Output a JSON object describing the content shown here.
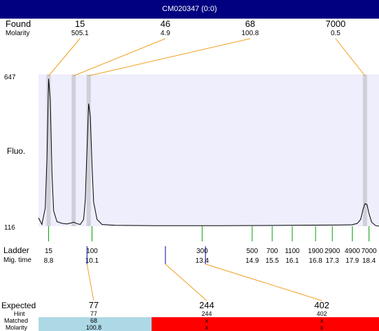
{
  "window": {
    "title": "CM020347 (0:0)"
  },
  "labels": {
    "found": "Found",
    "molarity": "Molarity",
    "fluo": "Fluo.",
    "ladder": "Ladder",
    "mig_time": "Mig. time",
    "expected": "Expected",
    "hint": "Hint",
    "matched": "Matched",
    "molarity_bottom": "Molarity"
  },
  "colors": {
    "title_bar": "#000080",
    "plot_bg": "#eeeefc",
    "peak_band": "#cfcfd8",
    "callout_line": "#f0a020",
    "ladder_tick": "#00a000",
    "marker_tick": "#0000a0",
    "matched_ok": "#add8e6",
    "matched_fail": "#ff0000"
  },
  "chart_data": {
    "type": "line",
    "title": "CM020347 (0:0)",
    "ylabel": "Fluo.",
    "ylim": [
      116,
      647
    ],
    "y_tick_labels": [
      "647",
      "116"
    ],
    "x_axis": "Mig. time",
    "xlim": [
      8.5,
      18.7
    ],
    "trace": [
      [
        8.5,
        145
      ],
      [
        8.6,
        122
      ],
      [
        8.7,
        180
      ],
      [
        8.75,
        350
      ],
      [
        8.8,
        632
      ],
      [
        8.85,
        560
      ],
      [
        8.9,
        300
      ],
      [
        8.95,
        170
      ],
      [
        9.05,
        132
      ],
      [
        9.2,
        126
      ],
      [
        9.35,
        124
      ],
      [
        9.5,
        128
      ],
      [
        9.55,
        130
      ],
      [
        9.65,
        125
      ],
      [
        9.75,
        122
      ],
      [
        9.85,
        140
      ],
      [
        9.9,
        210
      ],
      [
        9.95,
        380
      ],
      [
        10.0,
        545
      ],
      [
        10.05,
        500
      ],
      [
        10.1,
        330
      ],
      [
        10.15,
        200
      ],
      [
        10.25,
        140
      ],
      [
        10.4,
        122
      ],
      [
        10.8,
        119
      ],
      [
        12.0,
        118
      ],
      [
        14.0,
        118
      ],
      [
        16.0,
        119
      ],
      [
        17.5,
        120
      ],
      [
        17.9,
        121
      ],
      [
        18.05,
        126
      ],
      [
        18.15,
        140
      ],
      [
        18.22,
        175
      ],
      [
        18.28,
        195
      ],
      [
        18.34,
        192
      ],
      [
        18.4,
        160
      ],
      [
        18.48,
        130
      ],
      [
        18.6,
        118
      ],
      [
        18.7,
        116
      ]
    ],
    "found_peaks": [
      {
        "size": "15",
        "molarity": "505.1",
        "mig_time": 8.8
      },
      {
        "size": "46",
        "molarity": "4.9",
        "mig_time": 9.55
      },
      {
        "size": "68",
        "molarity": "100.8",
        "mig_time": 10.0
      },
      {
        "size": "7000",
        "molarity": "0.5",
        "mig_time": 18.28
      }
    ],
    "ladder": [
      {
        "size": "15",
        "mig_time": "8.8"
      },
      {
        "size": "100",
        "mig_time": "10.1"
      },
      {
        "size": "300",
        "mig_time": "13.4"
      },
      {
        "size": "500",
        "mig_time": "14.9"
      },
      {
        "size": "700",
        "mig_time": "15.5"
      },
      {
        "size": "1100",
        "mig_time": "16.1"
      },
      {
        "size": "1900",
        "mig_time": "16.8"
      },
      {
        "size": "2900",
        "mig_time": "17.3"
      },
      {
        "size": "4900",
        "mig_time": "17.9"
      },
      {
        "size": "7000",
        "mig_time": "18.4"
      }
    ],
    "expected": [
      {
        "size": "77",
        "hint": "77",
        "matched": "68",
        "molarity": "100.8",
        "ok": true,
        "marker_time": 9.95
      },
      {
        "size": "244",
        "hint": "244",
        "matched": "x",
        "molarity": "x",
        "ok": false,
        "marker_time": 12.3
      },
      {
        "size": "402",
        "hint": "402",
        "matched": "x",
        "molarity": "x",
        "ok": false,
        "marker_time": 13.5
      }
    ]
  }
}
